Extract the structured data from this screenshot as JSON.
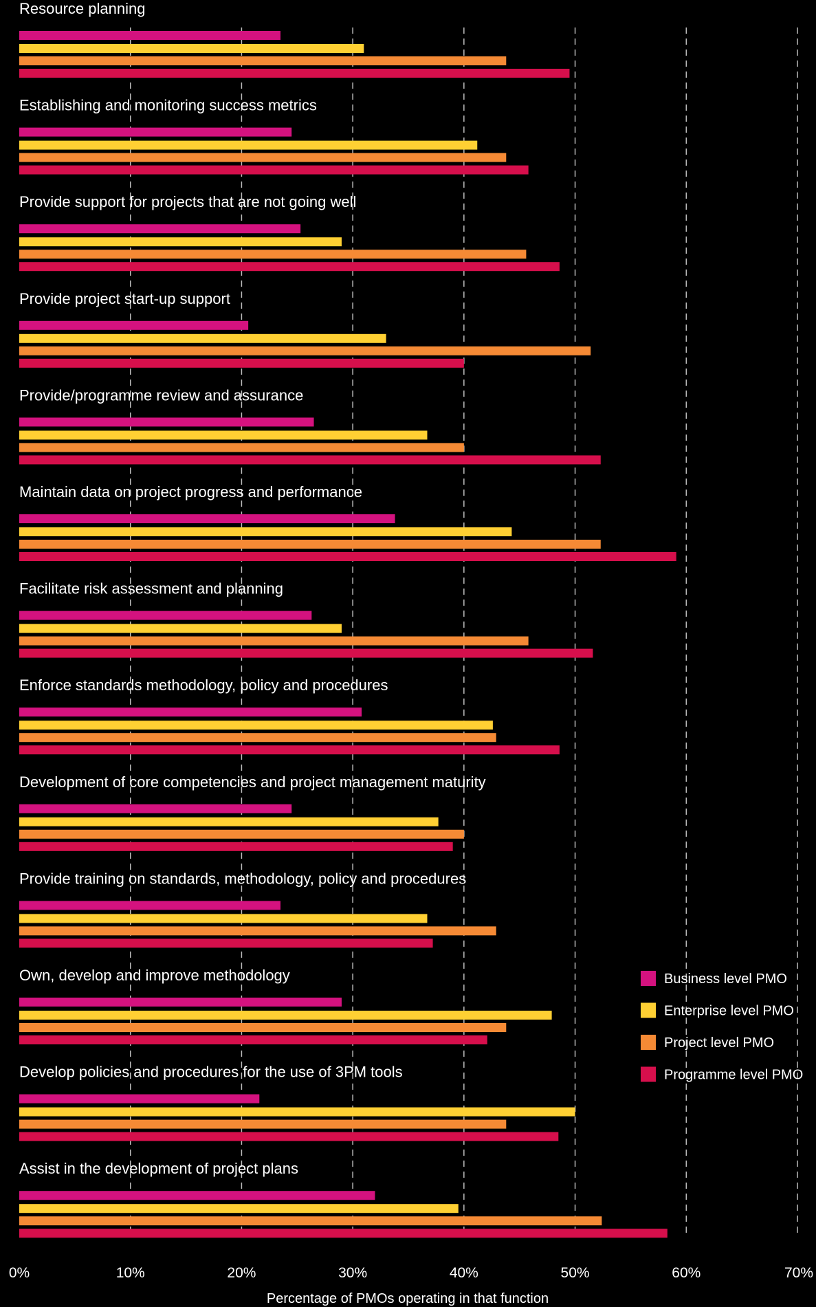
{
  "chart_data": {
    "type": "bar",
    "orientation": "horizontal",
    "categories": [
      "Resource planning",
      "Establishing and monitoring success metrics",
      "Provide support for projects that are not going well",
      "Provide project start-up support",
      "Provide/programme review and assurance",
      "Maintain data on project progress and performance",
      "Facilitate risk assessment and planning",
      "Enforce standards methodology, policy and procedures",
      "Development of core competencies and project management maturity",
      "Provide training on standards, methodology, policy and procedures",
      "Own, develop and improve methodology",
      "Develop policies and procedures for the use of 3PM tools",
      "Assist in the development of project plans"
    ],
    "series": [
      {
        "name": "Business level PMO",
        "color": "#D4127F",
        "values": [
          23.5,
          24.5,
          25.3,
          20.6,
          26.5,
          33.8,
          26.3,
          30.8,
          24.5,
          23.5,
          29.0,
          21.6,
          32.0
        ]
      },
      {
        "name": "Enterprise level PMO",
        "color": "#FFD033",
        "values": [
          31.0,
          41.2,
          29.0,
          33.0,
          36.7,
          44.3,
          29.0,
          42.6,
          37.7,
          36.7,
          47.9,
          50.0,
          39.5
        ]
      },
      {
        "name": "Project level PMO",
        "color": "#F58A35",
        "values": [
          43.8,
          43.8,
          45.6,
          51.4,
          40.0,
          52.3,
          45.8,
          42.9,
          40.0,
          42.9,
          43.8,
          43.8,
          52.4
        ]
      },
      {
        "name": "Programme level PMO",
        "color": "#D60F4C",
        "values": [
          49.5,
          45.8,
          48.6,
          40.0,
          52.3,
          59.1,
          51.6,
          48.6,
          39.0,
          37.2,
          42.1,
          48.5,
          58.3
        ]
      }
    ],
    "xlim": [
      0,
      70
    ],
    "xticks": [
      "0%",
      "10%",
      "20%",
      "30%",
      "40%",
      "50%",
      "60%",
      "70%"
    ],
    "xlabel": "Percentage of PMOs operating in that function",
    "ylabel": "",
    "title": "",
    "grid": "vertical dashed",
    "legend_position": "right"
  }
}
